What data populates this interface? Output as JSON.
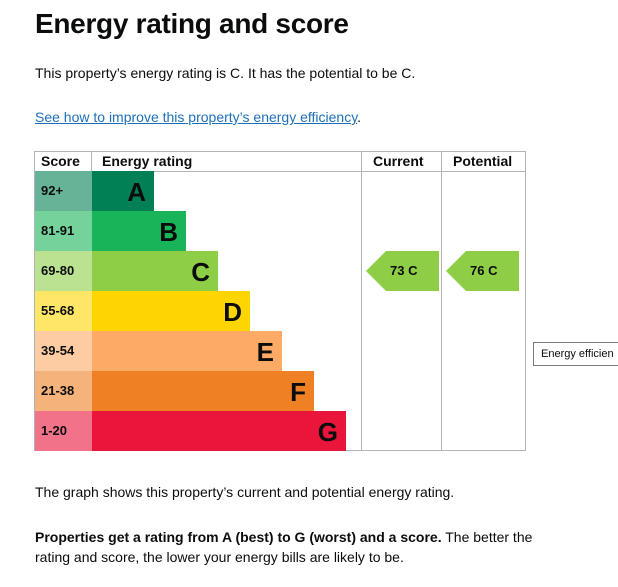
{
  "title": "Energy rating and score",
  "intro": "This property’s energy rating is C. It has the potential to be C.",
  "improve_link": "See how to improve this property’s energy efficiency",
  "improve_link_suffix": ".",
  "graph": {
    "headers": {
      "score": "Score",
      "energy_rating": "Energy rating",
      "current": "Current",
      "potential": "Potential"
    },
    "bands": [
      {
        "range": "92+",
        "letter": "A",
        "color": "#008054",
        "score_bg": "#66b398"
      },
      {
        "range": "81-91",
        "letter": "B",
        "color": "#19b459",
        "score_bg": "#75d29b"
      },
      {
        "range": "69-80",
        "letter": "C",
        "color": "#8dce46",
        "score_bg": "#bbe290"
      },
      {
        "range": "55-68",
        "letter": "D",
        "color": "#ffd500",
        "score_bg": "#ffe666"
      },
      {
        "range": "39-54",
        "letter": "E",
        "color": "#fcaa65",
        "score_bg": "#fdcca3"
      },
      {
        "range": "21-38",
        "letter": "F",
        "color": "#ef8023",
        "score_bg": "#f5b37b"
      },
      {
        "range": "1-20",
        "letter": "G",
        "color": "#e9153b",
        "score_bg": "#f27389"
      }
    ],
    "current": {
      "label": "73 C",
      "score": 73,
      "band": "C",
      "color": "#8dce46"
    },
    "potential": {
      "label": "76 C",
      "score": 76,
      "band": "C",
      "color": "#8dce46"
    }
  },
  "tooltip": "Energy efficien",
  "caption": "The graph shows this property’s current and potential energy rating.",
  "summary": {
    "bold": "Properties get a rating from A (best) to G (worst) and a score.",
    "rest": " The better the rating and score, the lower your energy bills are likely to be."
  }
}
